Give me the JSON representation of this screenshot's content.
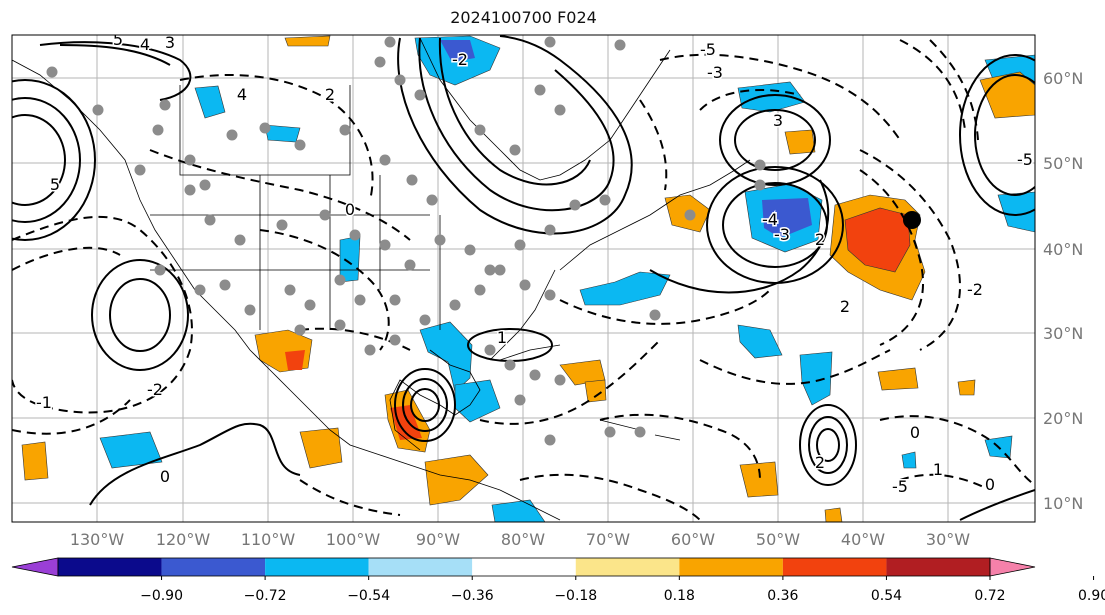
{
  "title": "2024100700 F024",
  "lon_labels": [
    "130°W",
    "120°W",
    "110°W",
    "100°W",
    "90°W",
    "80°W",
    "70°W",
    "60°W",
    "50°W",
    "40°W",
    "30°W"
  ],
  "lat_labels": [
    "60°N",
    "50°N",
    "40°N",
    "30°N",
    "20°N",
    "10°N"
  ],
  "colorbar": {
    "ticks": [
      "−0.90",
      "−0.72",
      "−0.54",
      "−0.36",
      "−0.18",
      "0.18",
      "0.36",
      "0.54",
      "0.72",
      "0.90"
    ],
    "colors": [
      "#9a3fd6",
      "#0b0a8c",
      "#3b59d0",
      "#0bb8f2",
      "#a6dff7",
      "#ffffff",
      "#fbe58a",
      "#f9a400",
      "#f2420e",
      "#b11e22",
      "#f581aa"
    ]
  },
  "contour_labels": [
    "5",
    "4",
    "3",
    "4",
    "2",
    "0",
    "-2",
    "-5",
    "-3",
    "3",
    "-4",
    "-3",
    "2",
    "1",
    "-1",
    "0",
    "-2",
    "2",
    "-5",
    "5",
    "-5",
    "0",
    "2",
    "0",
    "-2",
    "1"
  ],
  "marker_color": "#000000",
  "dot_color": "#8c8c8c"
}
